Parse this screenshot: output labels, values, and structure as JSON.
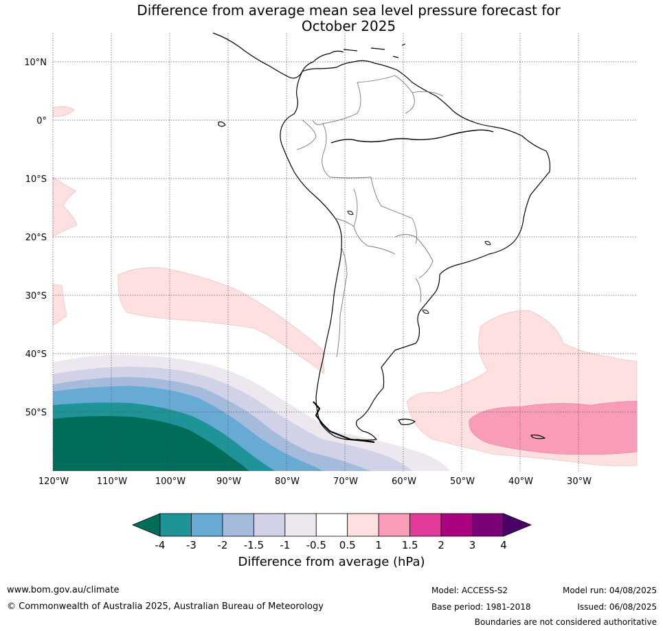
{
  "title_line1": "Difference from average mean sea level pressure forecast for",
  "title_line2": "October 2025",
  "lat_labels": [
    "10°N",
    "0°",
    "10°S",
    "20°S",
    "30°S",
    "40°S",
    "50°S"
  ],
  "lon_labels": [
    "120°W",
    "110°W",
    "100°W",
    "90°W",
    "80°W",
    "70°W",
    "60°W",
    "50°W",
    "40°W",
    "30°W"
  ],
  "colorbar": {
    "title": "Difference from average (hPa)",
    "tick_labels": [
      "-4",
      "-3",
      "-2",
      "-1.5",
      "-1",
      "-0.5",
      "0.5",
      "1",
      "1.5",
      "2",
      "3",
      "4"
    ],
    "under_color": "#006d5b",
    "over_color": "#4a0066",
    "colors": [
      "#1e9498",
      "#67aad3",
      "#a5bbdb",
      "#d1d2e7",
      "#ede7f0",
      "#ffffff",
      "#fde0df",
      "#f99cb7",
      "#e23b9c",
      "#ad0280",
      "#7a0177"
    ]
  },
  "footer": {
    "website": "www.bom.gov.au/climate",
    "copyright": "© Commonwealth of Australia 2025, Australian Bureau of Meteorology",
    "model": "Model: ACCESS-S2",
    "base_period": "Base period: 1981-2018",
    "model_run": "Model run: 04/08/2025",
    "issued": "Issued: 06/08/2025",
    "disclaimer": "Boundaries are not considered authoritative"
  }
}
